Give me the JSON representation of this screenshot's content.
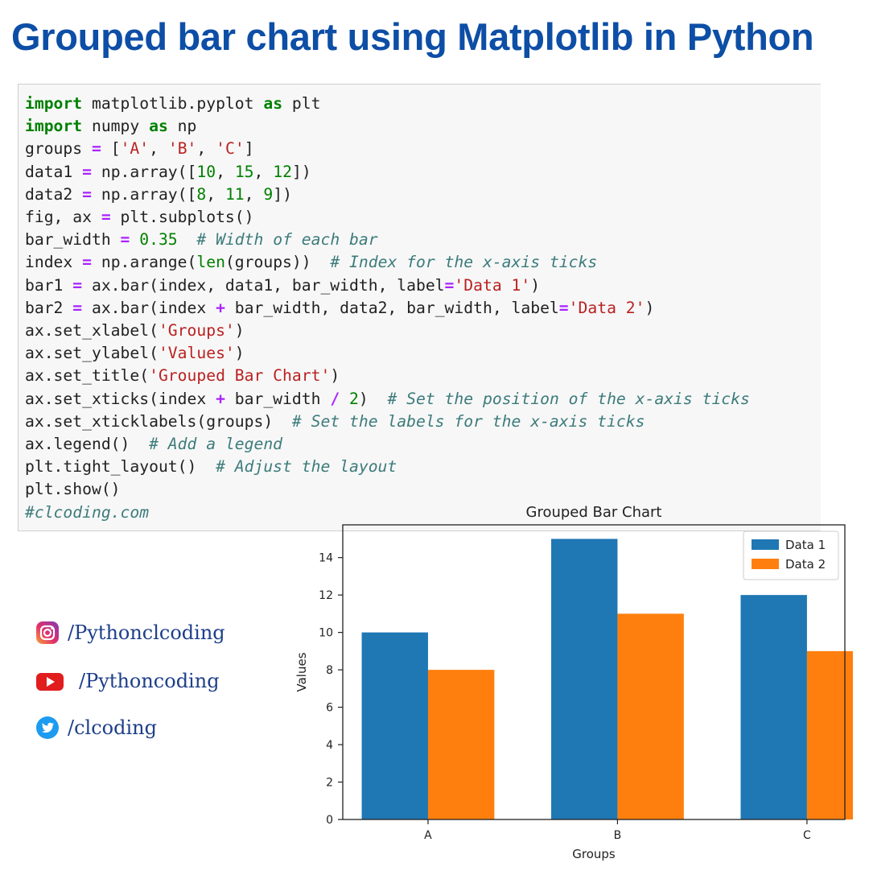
{
  "headline": "Grouped bar chart using Matplotlib in Python",
  "code_lines": [
    [
      {
        "t": "import",
        "c": "kw"
      },
      {
        "t": " matplotlib.pyplot ",
        "c": ""
      },
      {
        "t": "as",
        "c": "kw"
      },
      {
        "t": " plt",
        "c": ""
      }
    ],
    [
      {
        "t": "import",
        "c": "kw"
      },
      {
        "t": " numpy ",
        "c": ""
      },
      {
        "t": "as",
        "c": "kw"
      },
      {
        "t": " np",
        "c": ""
      }
    ],
    [
      {
        "t": "groups ",
        "c": ""
      },
      {
        "t": "=",
        "c": "op"
      },
      {
        "t": " [",
        "c": ""
      },
      {
        "t": "'A'",
        "c": "str"
      },
      {
        "t": ", ",
        "c": ""
      },
      {
        "t": "'B'",
        "c": "str"
      },
      {
        "t": ", ",
        "c": ""
      },
      {
        "t": "'C'",
        "c": "str"
      },
      {
        "t": "]",
        "c": ""
      }
    ],
    [
      {
        "t": "data1 ",
        "c": ""
      },
      {
        "t": "=",
        "c": "op"
      },
      {
        "t": " np.array([",
        "c": ""
      },
      {
        "t": "10",
        "c": "num"
      },
      {
        "t": ", ",
        "c": ""
      },
      {
        "t": "15",
        "c": "num"
      },
      {
        "t": ", ",
        "c": ""
      },
      {
        "t": "12",
        "c": "num"
      },
      {
        "t": "])",
        "c": ""
      }
    ],
    [
      {
        "t": "data2 ",
        "c": ""
      },
      {
        "t": "=",
        "c": "op"
      },
      {
        "t": " np.array([",
        "c": ""
      },
      {
        "t": "8",
        "c": "num"
      },
      {
        "t": ", ",
        "c": ""
      },
      {
        "t": "11",
        "c": "num"
      },
      {
        "t": ", ",
        "c": ""
      },
      {
        "t": "9",
        "c": "num"
      },
      {
        "t": "])",
        "c": ""
      }
    ],
    [
      {
        "t": "fig, ax ",
        "c": ""
      },
      {
        "t": "=",
        "c": "op"
      },
      {
        "t": " plt.subplots()",
        "c": ""
      }
    ],
    [
      {
        "t": "bar_width ",
        "c": ""
      },
      {
        "t": "=",
        "c": "op"
      },
      {
        "t": " ",
        "c": ""
      },
      {
        "t": "0.35",
        "c": "num"
      },
      {
        "t": "  ",
        "c": ""
      },
      {
        "t": "# Width of each bar",
        "c": "com"
      }
    ],
    [
      {
        "t": "index ",
        "c": ""
      },
      {
        "t": "=",
        "c": "op"
      },
      {
        "t": " np.arange(",
        "c": ""
      },
      {
        "t": "len",
        "c": "num"
      },
      {
        "t": "(groups))  ",
        "c": ""
      },
      {
        "t": "# Index for the x-axis ticks",
        "c": "com"
      }
    ],
    [
      {
        "t": "bar1 ",
        "c": ""
      },
      {
        "t": "=",
        "c": "op"
      },
      {
        "t": " ax.bar(index, data1, bar_width, label",
        "c": ""
      },
      {
        "t": "=",
        "c": "op"
      },
      {
        "t": "'Data 1'",
        "c": "str"
      },
      {
        "t": ")",
        "c": ""
      }
    ],
    [
      {
        "t": "bar2 ",
        "c": ""
      },
      {
        "t": "=",
        "c": "op"
      },
      {
        "t": " ax.bar(index ",
        "c": ""
      },
      {
        "t": "+",
        "c": "op"
      },
      {
        "t": " bar_width, data2, bar_width, label",
        "c": ""
      },
      {
        "t": "=",
        "c": "op"
      },
      {
        "t": "'Data 2'",
        "c": "str"
      },
      {
        "t": ")",
        "c": ""
      }
    ],
    [
      {
        "t": "ax.set_xlabel(",
        "c": ""
      },
      {
        "t": "'Groups'",
        "c": "str"
      },
      {
        "t": ")",
        "c": ""
      }
    ],
    [
      {
        "t": "ax.set_ylabel(",
        "c": ""
      },
      {
        "t": "'Values'",
        "c": "str"
      },
      {
        "t": ")",
        "c": ""
      }
    ],
    [
      {
        "t": "ax.set_title(",
        "c": ""
      },
      {
        "t": "'Grouped Bar Chart'",
        "c": "str"
      },
      {
        "t": ")",
        "c": ""
      }
    ],
    [
      {
        "t": "ax.set_xticks(index ",
        "c": ""
      },
      {
        "t": "+",
        "c": "op"
      },
      {
        "t": " bar_width ",
        "c": ""
      },
      {
        "t": "/",
        "c": "op"
      },
      {
        "t": " ",
        "c": ""
      },
      {
        "t": "2",
        "c": "num"
      },
      {
        "t": ")  ",
        "c": ""
      },
      {
        "t": "# Set the position of the x-axis ticks",
        "c": "com"
      }
    ],
    [
      {
        "t": "ax.set_xticklabels(groups)  ",
        "c": ""
      },
      {
        "t": "# Set the labels for the x-axis ticks",
        "c": "com"
      }
    ],
    [
      {
        "t": "ax.legend()  ",
        "c": ""
      },
      {
        "t": "# Add a legend",
        "c": "com"
      }
    ],
    [
      {
        "t": "plt.tight_layout()  ",
        "c": ""
      },
      {
        "t": "# Adjust the layout",
        "c": "com"
      }
    ],
    [
      {
        "t": "plt.show()",
        "c": ""
      }
    ],
    [
      {
        "t": "#clcoding.com",
        "c": "com"
      }
    ]
  ],
  "social": [
    {
      "icon": "instagram-icon",
      "label": "/Pythonclcoding"
    },
    {
      "icon": "youtube-icon",
      "label": "/Pythoncoding"
    },
    {
      "icon": "twitter-icon",
      "label": "/clcoding"
    }
  ],
  "chart_data": {
    "type": "bar",
    "title": "Grouped Bar Chart",
    "xlabel": "Groups",
    "ylabel": "Values",
    "categories": [
      "A",
      "B",
      "C"
    ],
    "series": [
      {
        "name": "Data 1",
        "values": [
          10,
          15,
          12
        ],
        "color": "#1f77b4"
      },
      {
        "name": "Data 2",
        "values": [
          8,
          11,
          9
        ],
        "color": "#ff7f0e"
      }
    ],
    "ylim": [
      0,
      15.75
    ],
    "yticks": [
      0,
      2,
      4,
      6,
      8,
      10,
      12,
      14
    ],
    "grid": false,
    "legend_position": "top-right"
  }
}
